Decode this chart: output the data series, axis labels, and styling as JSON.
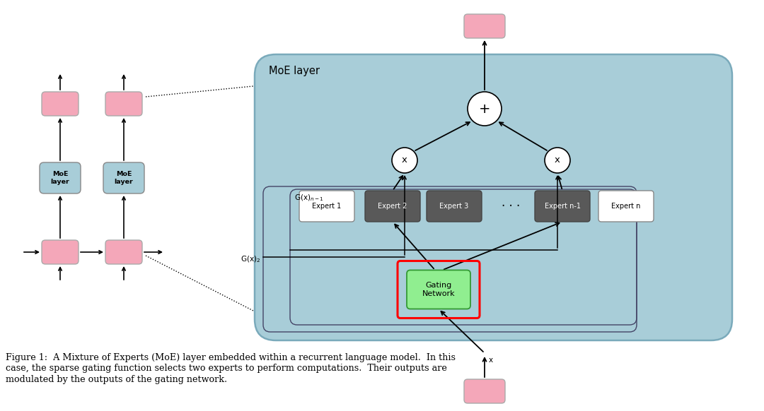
{
  "bg_color": "#ffffff",
  "pink_color": "#f4a7b9",
  "blue_box_color": "#a8cdd8",
  "moe_bg_color": "#a8cdd8",
  "dark_gray_color": "#5a5a5a",
  "expert2_color": "#666666",
  "green_color": "#90ee90",
  "white_color": "#ffffff",
  "red_border_color": "#dd0000",
  "text_color": "#000000",
  "figure_caption_l1": "Figure 1:  A Mixture of Experts (MoE) layer embedded within a recurrent language model.  In this",
  "figure_caption_l2": "case, the sparse gating function selects two experts to perform computations.  Their outputs are",
  "figure_caption_l3": "modulated by the outputs of the gating network.",
  "moe_label": "MoE layer"
}
